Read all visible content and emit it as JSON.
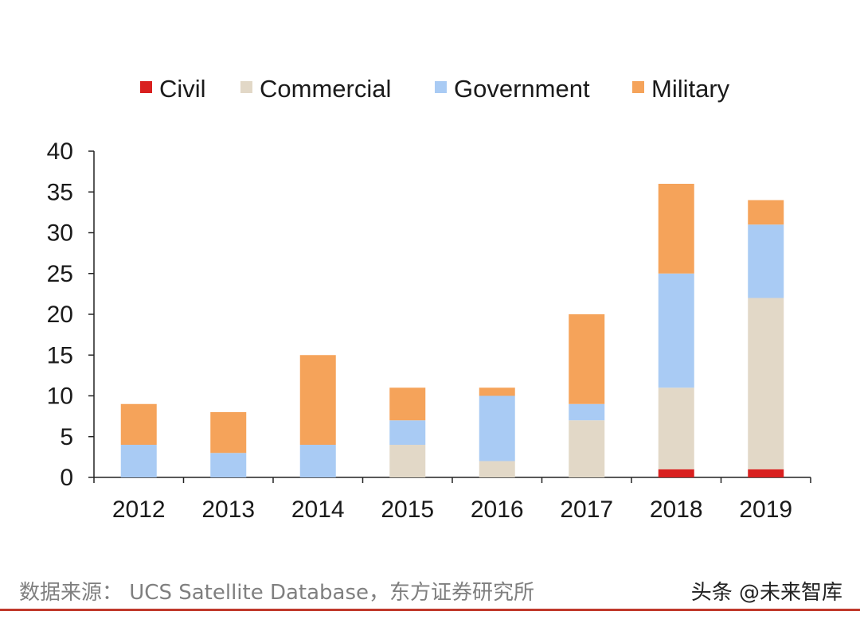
{
  "chart_data": {
    "type": "bar",
    "stacked": true,
    "title": "",
    "xlabel": "",
    "ylabel": "",
    "ylim": [
      0,
      40
    ],
    "yticks": [
      0,
      5,
      10,
      15,
      20,
      25,
      30,
      35,
      40
    ],
    "categories": [
      "2012",
      "2013",
      "2014",
      "2015",
      "2016",
      "2017",
      "2018",
      "2019"
    ],
    "series": [
      {
        "name": "Civil",
        "color": "#d9201f",
        "values": [
          0,
          0,
          0,
          0,
          0,
          0,
          1,
          1
        ]
      },
      {
        "name": "Commercial",
        "color": "#e2d8c7",
        "values": [
          0,
          0,
          0,
          4,
          2,
          7,
          10,
          21
        ]
      },
      {
        "name": "Government",
        "color": "#a9cbf4",
        "values": [
          4,
          3,
          4,
          3,
          8,
          2,
          14,
          9
        ]
      },
      {
        "name": "Military",
        "color": "#f5a35a",
        "values": [
          5,
          5,
          11,
          4,
          1,
          11,
          11,
          3
        ]
      }
    ],
    "legend_position": "top",
    "grid": false
  },
  "source": "数据来源：  UCS Satellite Database，东方证券研究所",
  "watermark": "头条 @未来智库"
}
